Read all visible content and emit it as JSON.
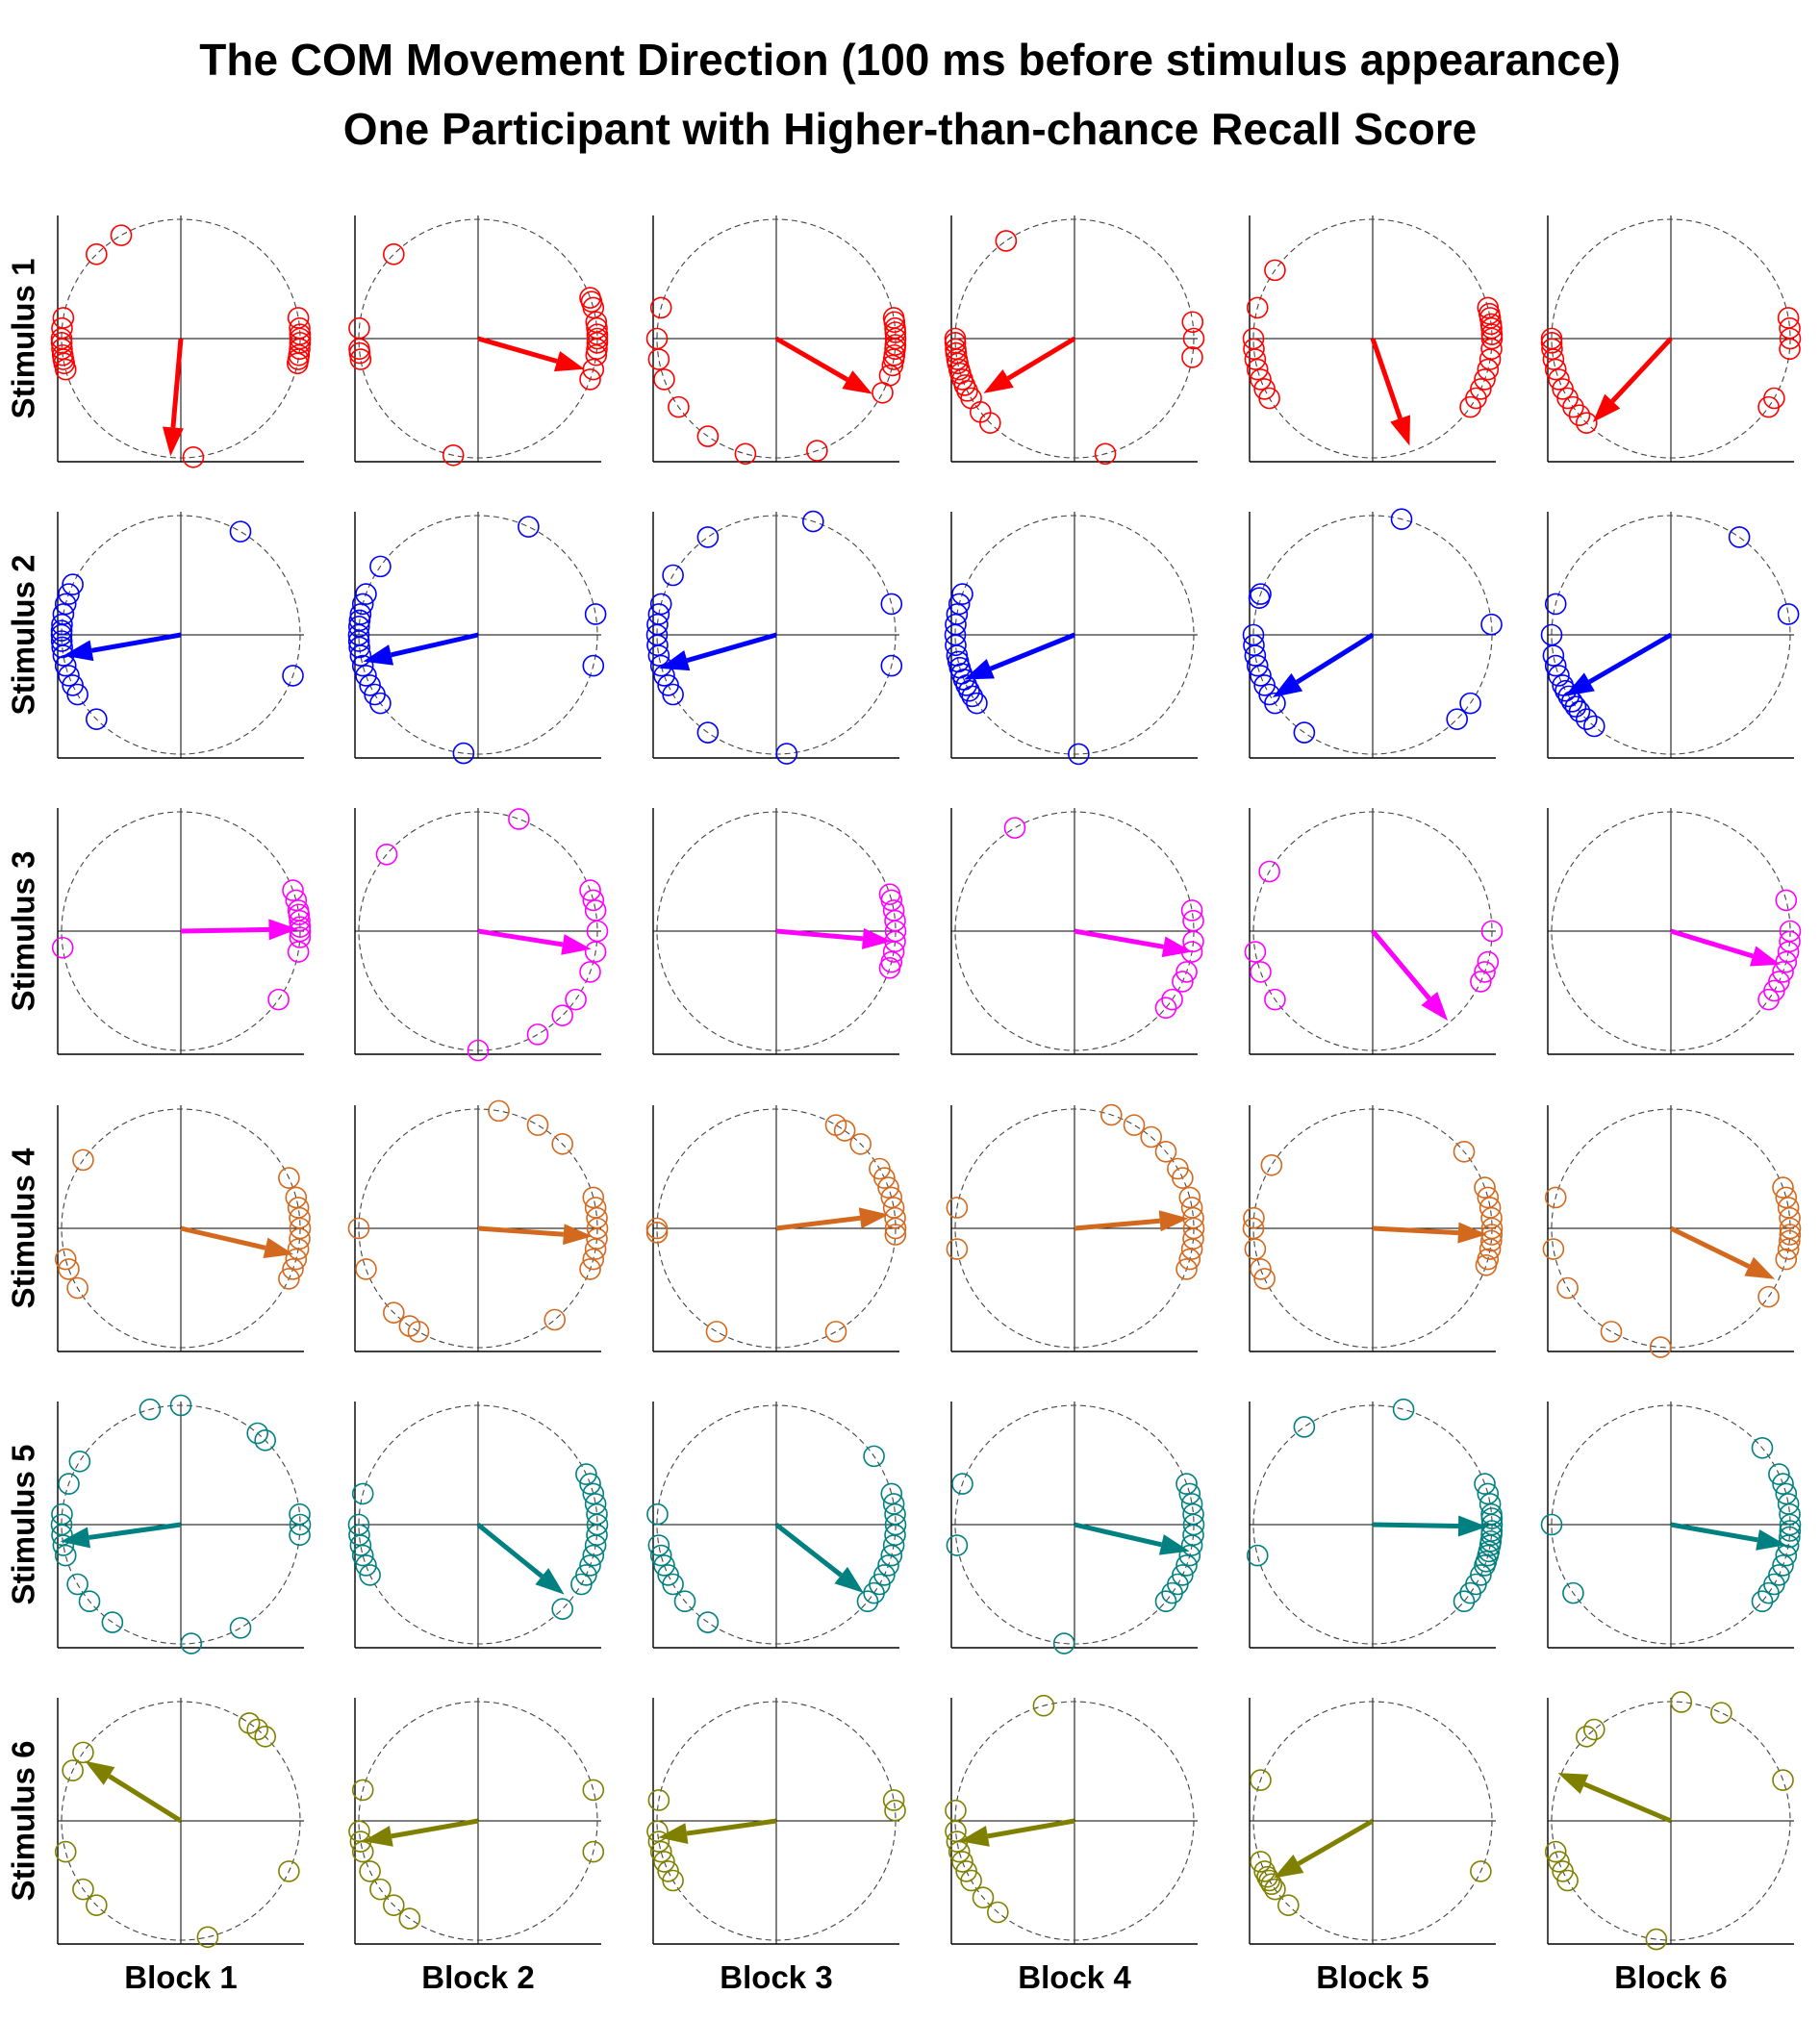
{
  "chart_data": {
    "type": "scatter",
    "subtype": "polar small multiples (6 stimuli x 6 blocks); each panel shows unit-circle direction markers (open circles) and a mean-direction arrow",
    "title": "The COM Movement Direction (100 ms before stimulus appearance)",
    "subtitle": "One Participant with Higher-than-chance Recall Score",
    "row_labels": [
      "Stimulus 1",
      "Stimulus 2",
      "Stimulus 3",
      "Stimulus 4",
      "Stimulus 5",
      "Stimulus 6"
    ],
    "column_labels": [
      "Block 1",
      "Block 2",
      "Block 3",
      "Block 4",
      "Block 5",
      "Block 6"
    ],
    "row_colors": [
      "#ff0000",
      "#0000ff",
      "#ff00ff",
      "#d2691e",
      "#008080",
      "#808000"
    ],
    "axes": {
      "range": [
        -1,
        1
      ],
      "grid": "center crosshair",
      "reference_circle": "unit circle (dashed)"
    },
    "panels": [
      [
        {
          "dir_deg": [
            120,
            135,
            170,
            175,
            180,
            182,
            185,
            188,
            190,
            192,
            195,
            -84,
            10,
            5,
            2,
            0,
            -2,
            -5,
            -8,
            -10,
            -12
          ],
          "arrow": {
            "angle_deg": -95,
            "length": 0.99
          }
        },
        {
          "dir_deg": [
            135,
            175,
            185,
            187,
            190,
            -102,
            20,
            18,
            15,
            8,
            5,
            2,
            0,
            -2,
            -5,
            -8,
            -15,
            -20
          ],
          "arrow": {
            "angle_deg": -16,
            "length": 0.93
          }
        },
        {
          "dir_deg": [
            165,
            180,
            190,
            200,
            215,
            235,
            -105,
            -70,
            -27,
            10,
            8,
            5,
            3,
            0,
            -3,
            -5,
            -8,
            -10,
            -13,
            -18
          ],
          "arrow": {
            "angle_deg": -30,
            "length": 0.93
          }
        },
        {
          "dir_deg": [
            125,
            180,
            182,
            185,
            187,
            190,
            192,
            195,
            197,
            200,
            203,
            206,
            210,
            218,
            225,
            -75,
            8,
            0,
            -9
          ],
          "arrow": {
            "angle_deg": -149,
            "length": 0.89
          }
        },
        {
          "dir_deg": [
            145,
            165,
            180,
            185,
            190,
            195,
            200,
            205,
            210,
            15,
            12,
            10,
            7,
            5,
            2,
            0,
            -5,
            -10,
            -15,
            -20,
            -25,
            -30,
            -35
          ],
          "arrow": {
            "angle_deg": -71,
            "length": 0.95
          }
        },
        {
          "dir_deg": [
            180,
            182,
            185,
            190,
            195,
            200,
            205,
            210,
            215,
            220,
            225,
            10,
            5,
            0,
            -5,
            -30,
            -35
          ],
          "arrow": {
            "angle_deg": -133,
            "length": 0.96
          }
        }
      ],
      [
        {
          "dir_deg": [
            60,
            160,
            155,
            165,
            170,
            175,
            178,
            180,
            183,
            186,
            190,
            195,
            200,
            205,
            210,
            225,
            -20
          ],
          "arrow": {
            "angle_deg": -170,
            "length": 1.0
          }
        },
        {
          "dir_deg": [
            65,
            145,
            160,
            165,
            170,
            173,
            176,
            180,
            183,
            186,
            190,
            195,
            200,
            205,
            210,
            215,
            -97,
            10,
            -15
          ],
          "arrow": {
            "angle_deg": -167,
            "length": 0.99
          }
        },
        {
          "dir_deg": [
            72,
            125,
            150,
            165,
            170,
            175,
            180,
            185,
            190,
            195,
            200,
            205,
            210,
            235,
            -85,
            15,
            -15
          ],
          "arrow": {
            "angle_deg": -164,
            "length": 1.02
          }
        },
        {
          "dir_deg": [
            160,
            165,
            170,
            175,
            180,
            185,
            190,
            193,
            196,
            199,
            202,
            205,
            208,
            211,
            215,
            -88
          ],
          "arrow": {
            "angle_deg": -158,
            "length": 1.0
          }
        },
        {
          "dir_deg": [
            76,
            160,
            162,
            180,
            185,
            190,
            195,
            200,
            205,
            210,
            215,
            235,
            -45,
            -35,
            5
          ],
          "arrow": {
            "angle_deg": -148,
            "length": 0.99
          }
        },
        {
          "dir_deg": [
            55,
            10,
            165,
            180,
            190,
            195,
            200,
            205,
            208,
            211,
            214,
            217,
            220,
            225,
            230
          ],
          "arrow": {
            "angle_deg": -150,
            "length": 1.03
          }
        }
      ],
      [
        {
          "dir_deg": [
            20,
            15,
            10,
            8,
            5,
            2,
            0,
            -3,
            -10,
            -35,
            188
          ],
          "arrow": {
            "angle_deg": 1,
            "length": 0.98
          }
        },
        {
          "dir_deg": [
            70,
            140,
            20,
            15,
            10,
            0,
            -10,
            -20,
            -35,
            -45,
            -60,
            -90
          ],
          "arrow": {
            "angle_deg": -9,
            "length": 0.96
          }
        },
        {
          "dir_deg": [
            18,
            15,
            10,
            5,
            0,
            -5,
            -10,
            -15,
            -18
          ],
          "arrow": {
            "angle_deg": -5,
            "length": 0.97
          }
        },
        {
          "dir_deg": [
            120,
            10,
            5,
            -5,
            -10,
            -20,
            -25,
            -35,
            -40
          ],
          "arrow": {
            "angle_deg": -10,
            "length": 1.0
          }
        },
        {
          "dir_deg": [
            150,
            190,
            200,
            215,
            0,
            -15,
            -20,
            -25
          ],
          "arrow": {
            "angle_deg": -50,
            "length": 0.98
          }
        },
        {
          "dir_deg": [
            15,
            0,
            -5,
            -10,
            -15,
            -20,
            -25,
            -30,
            -35
          ],
          "arrow": {
            "angle_deg": -17,
            "length": 0.96
          }
        }
      ],
      [
        {
          "dir_deg": [
            145,
            195,
            200,
            210,
            25,
            15,
            10,
            5,
            0,
            -5,
            -10,
            -15,
            -20,
            -25
          ],
          "arrow": {
            "angle_deg": -13,
            "length": 0.97
          }
        },
        {
          "dir_deg": [
            80,
            60,
            45,
            180,
            200,
            225,
            235,
            240,
            -50,
            15,
            10,
            5,
            0,
            -5,
            -10,
            -15,
            -20
          ],
          "arrow": {
            "angle_deg": -4,
            "length": 0.96
          }
        },
        {
          "dir_deg": [
            180,
            182,
            240,
            -60,
            60,
            55,
            45,
            30,
            25,
            20,
            15,
            10,
            5,
            0,
            -3
          ],
          "arrow": {
            "angle_deg": 7,
            "length": 0.95
          }
        },
        {
          "dir_deg": [
            72,
            60,
            50,
            40,
            30,
            25,
            170,
            190,
            15,
            10,
            5,
            0,
            -5,
            -10,
            -15,
            -20
          ],
          "arrow": {
            "angle_deg": 5,
            "length": 0.96
          }
        },
        {
          "dir_deg": [
            148,
            175,
            180,
            190,
            200,
            205,
            40,
            20,
            15,
            10,
            5,
            0,
            -3,
            -6,
            -10,
            -15,
            -18
          ],
          "arrow": {
            "angle_deg": -3,
            "length": 0.96
          }
        },
        {
          "dir_deg": [
            165,
            190,
            210,
            240,
            -95,
            -35,
            20,
            15,
            10,
            5,
            0,
            -3,
            -6,
            -10,
            -15
          ],
          "arrow": {
            "angle_deg": -26,
            "length": 0.97
          }
        }
      ],
      [
        {
          "dir_deg": [
            105,
            90,
            50,
            45,
            148,
            160,
            175,
            180,
            185,
            190,
            195,
            210,
            220,
            235,
            -85,
            -60,
            5,
            0,
            -5
          ],
          "arrow": {
            "angle_deg": -172,
            "length": 1.02
          }
        },
        {
          "dir_deg": [
            165,
            180,
            185,
            190,
            195,
            200,
            205,
            25,
            20,
            15,
            10,
            5,
            0,
            -5,
            -10,
            -15,
            -20,
            -25,
            -30,
            -45
          ],
          "arrow": {
            "angle_deg": -39,
            "length": 0.93
          }
        },
        {
          "dir_deg": [
            35,
            15,
            10,
            5,
            0,
            -5,
            -10,
            -15,
            -20,
            -25,
            -30,
            -35,
            -40,
            175,
            190,
            195,
            200,
            205,
            210,
            220,
            235
          ],
          "arrow": {
            "angle_deg": -38,
            "length": 0.93
          }
        },
        {
          "dir_deg": [
            160,
            190,
            20,
            15,
            10,
            5,
            0,
            -5,
            -10,
            -15,
            -20,
            -25,
            -30,
            -35,
            -40,
            -95
          ],
          "arrow": {
            "angle_deg": -13,
            "length": 0.99
          }
        },
        {
          "dir_deg": [
            125,
            75,
            195,
            20,
            15,
            10,
            5,
            3,
            0,
            -3,
            -5,
            -8,
            -10,
            -13,
            -15,
            -18,
            -20,
            -25,
            -30,
            -35,
            -40
          ],
          "arrow": {
            "angle_deg": -1,
            "length": 0.96
          }
        },
        {
          "dir_deg": [
            40,
            25,
            20,
            15,
            10,
            5,
            0,
            -3,
            -6,
            -10,
            -15,
            -20,
            -25,
            -30,
            -35,
            -40,
            180,
            215
          ],
          "arrow": {
            "angle_deg": -10,
            "length": 0.98
          }
        }
      ],
      [
        {
          "dir_deg": [
            155,
            145,
            50,
            55,
            45,
            195,
            215,
            225,
            -77,
            -25
          ],
          "arrow": {
            "angle_deg": 148,
            "length": 0.95
          }
        },
        {
          "dir_deg": [
            165,
            185,
            190,
            195,
            205,
            215,
            225,
            235,
            15,
            -15
          ],
          "arrow": {
            "angle_deg": -170,
            "length": 0.98
          }
        },
        {
          "dir_deg": [
            170,
            185,
            190,
            195,
            200,
            205,
            210,
            10,
            5
          ],
          "arrow": {
            "angle_deg": -172,
            "length": 1.0
          }
        },
        {
          "dir_deg": [
            105,
            175,
            185,
            190,
            195,
            200,
            205,
            210,
            220,
            230
          ],
          "arrow": {
            "angle_deg": -170,
            "length": 0.98
          }
        },
        {
          "dir_deg": [
            160,
            200,
            205,
            208,
            210,
            212,
            215,
            225,
            -25
          ],
          "arrow": {
            "angle_deg": -150,
            "length": 0.96
          }
        },
        {
          "dir_deg": [
            85,
            65,
            130,
            135,
            20,
            195,
            200,
            205,
            210,
            -97
          ],
          "arrow": {
            "angle_deg": 157,
            "length": 1.03
          }
        }
      ]
    ]
  }
}
